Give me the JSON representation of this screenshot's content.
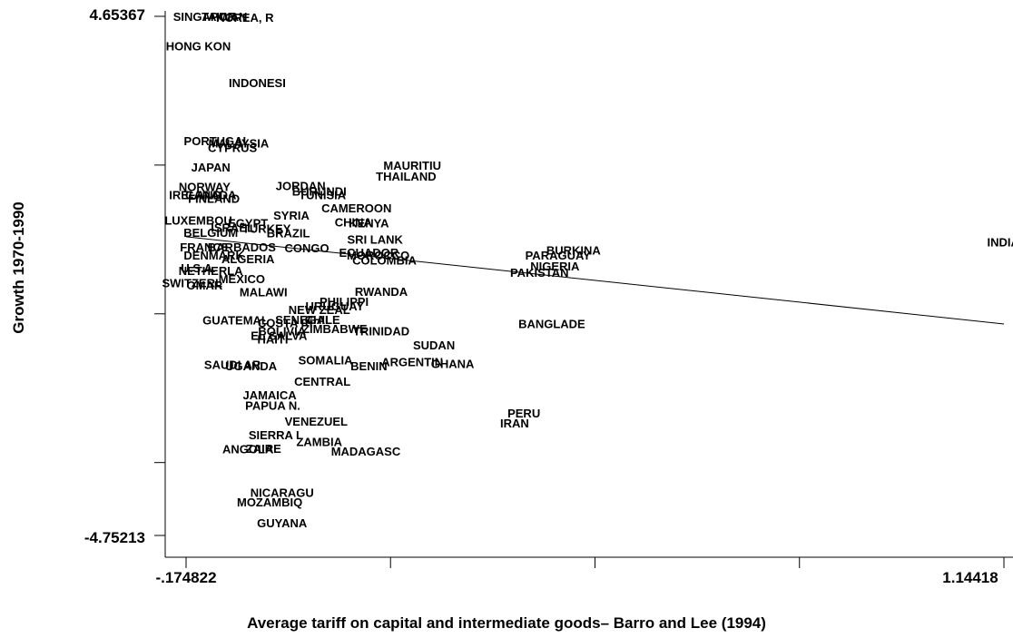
{
  "chart_data": {
    "type": "scatter",
    "title": "",
    "xlabel": "Average tariff on capital and intermediate goods– Barro and Lee (1994)",
    "ylabel": "Growth 1970-1990",
    "xlim": [
      -0.174822,
      1.14418
    ],
    "ylim": [
      -4.75213,
      4.65367
    ],
    "x_tick_labels": [
      "-.174822",
      "1.14418"
    ],
    "y_tick_labels": [
      "4.65367",
      "-4.75213"
    ],
    "x_ticks": [
      -0.174822,
      0.1549,
      0.4847,
      0.8144,
      1.14418
    ],
    "y_ticks": [
      4.65367,
      1.9586,
      -0.7364,
      -3.4314,
      -4.75213
    ],
    "fit_line": [
      [
        -0.174822,
        0.66
      ],
      [
        1.14418,
        -0.92
      ]
    ],
    "points": [
      {
        "label": "SINGAPOR",
        "x": -0.145,
        "y": 4.65
      },
      {
        "label": "TAIWAN",
        "x": -0.113,
        "y": 4.65
      },
      {
        "label": "KOREA, R",
        "x": -0.08,
        "y": 4.64
      },
      {
        "label": "HONG KON",
        "x": -0.155,
        "y": 4.12
      },
      {
        "label": "INDONESI",
        "x": -0.06,
        "y": 3.45
      },
      {
        "label": "PORTUGAL",
        "x": -0.125,
        "y": 2.4
      },
      {
        "label": "MALAYSIA",
        "x": -0.09,
        "y": 2.36
      },
      {
        "label": "CYPRUS",
        "x": -0.1,
        "y": 2.28
      },
      {
        "label": "MAURITIU",
        "x": 0.19,
        "y": 1.96
      },
      {
        "label": "JAPAN",
        "x": -0.135,
        "y": 1.92
      },
      {
        "label": "THAILAND",
        "x": 0.18,
        "y": 1.76
      },
      {
        "label": "NORWAY",
        "x": -0.145,
        "y": 1.57
      },
      {
        "label": "JORDAN",
        "x": 0.01,
        "y": 1.59
      },
      {
        "label": "BURUNDI",
        "x": 0.04,
        "y": 1.49
      },
      {
        "label": "TUNISIA",
        "x": 0.045,
        "y": 1.42
      },
      {
        "label": "IRELAND",
        "x": -0.16,
        "y": 1.42
      },
      {
        "label": "CANADA",
        "x": -0.135,
        "y": 1.42
      },
      {
        "label": "FINLAND",
        "x": -0.13,
        "y": 1.36
      },
      {
        "label": "CAMEROON",
        "x": 0.1,
        "y": 1.18
      },
      {
        "label": "SYRIA",
        "x": -0.005,
        "y": 1.05
      },
      {
        "label": "LUXEMBOU",
        "x": -0.155,
        "y": 0.96
      },
      {
        "label": "CHINA",
        "x": 0.095,
        "y": 0.93
      },
      {
        "label": "KENYA",
        "x": 0.12,
        "y": 0.91
      },
      {
        "label": "EGYPT",
        "x": -0.075,
        "y": 0.91
      },
      {
        "label": "ISRAEL",
        "x": -0.1,
        "y": 0.83
      },
      {
        "label": "TURKEY",
        "x": -0.045,
        "y": 0.81
      },
      {
        "label": "BELGIUM",
        "x": -0.135,
        "y": 0.74
      },
      {
        "label": "BRAZIL",
        "x": -0.01,
        "y": 0.73
      },
      {
        "label": "SRI LANK",
        "x": 0.13,
        "y": 0.62
      },
      {
        "label": "FRANCE",
        "x": -0.145,
        "y": 0.48
      },
      {
        "label": "BARBADOS",
        "x": -0.085,
        "y": 0.48
      },
      {
        "label": "CONGO",
        "x": 0.02,
        "y": 0.46
      },
      {
        "label": "BURKINA",
        "x": 0.45,
        "y": 0.42
      },
      {
        "label": "PARAGUAY",
        "x": 0.425,
        "y": 0.33
      },
      {
        "label": "DENMARK",
        "x": -0.13,
        "y": 0.33
      },
      {
        "label": "ECUADOR",
        "x": 0.12,
        "y": 0.38
      },
      {
        "label": "MOROCCO",
        "x": 0.135,
        "y": 0.33
      },
      {
        "label": "ALGERIA",
        "x": -0.075,
        "y": 0.26
      },
      {
        "label": "COLOMBIA",
        "x": 0.145,
        "y": 0.24
      },
      {
        "label": "NIGERIA",
        "x": 0.42,
        "y": 0.13
      },
      {
        "label": "INDIA",
        "x": 1.12,
        "y": 0.57
      },
      {
        "label": "U.S.A.",
        "x": -0.155,
        "y": 0.1
      },
      {
        "label": "NETHERLA",
        "x": -0.135,
        "y": 0.05
      },
      {
        "label": "PAKISTAN",
        "x": 0.395,
        "y": 0.02
      },
      {
        "label": "MEXICO",
        "x": -0.085,
        "y": -0.1
      },
      {
        "label": "SWITZERL",
        "x": -0.165,
        "y": -0.17
      },
      {
        "label": "OMAR",
        "x": -0.145,
        "y": -0.21
      },
      {
        "label": "MALAWI",
        "x": -0.05,
        "y": -0.34
      },
      {
        "label": "RWANDA",
        "x": 0.14,
        "y": -0.33
      },
      {
        "label": "PHILIPPI",
        "x": 0.08,
        "y": -0.51
      },
      {
        "label": "URUGUAY",
        "x": 0.065,
        "y": -0.59
      },
      {
        "label": "NEW ZEAL",
        "x": 0.04,
        "y": -0.66
      },
      {
        "label": "GUATEMAL",
        "x": -0.095,
        "y": -0.85
      },
      {
        "label": "SENEGAL",
        "x": 0.015,
        "y": -0.84
      },
      {
        "label": "CHILE",
        "x": 0.045,
        "y": -0.84
      },
      {
        "label": "COSTA RI",
        "x": -0.015,
        "y": -0.9
      },
      {
        "label": "BANGLADE",
        "x": 0.415,
        "y": -0.91
      },
      {
        "label": "BOLIVIA",
        "x": -0.02,
        "y": -1.04
      },
      {
        "label": "ZIMBABWE",
        "x": 0.065,
        "y": -1.0
      },
      {
        "label": "TRINIDAD",
        "x": 0.14,
        "y": -1.04
      },
      {
        "label": "EL SALVA",
        "x": -0.025,
        "y": -1.13
      },
      {
        "label": "HAITI",
        "x": -0.035,
        "y": -1.19
      },
      {
        "label": "SUDAN",
        "x": 0.225,
        "y": -1.3
      },
      {
        "label": "SOMALIA",
        "x": 0.05,
        "y": -1.57
      },
      {
        "label": "ARGENTIN",
        "x": 0.19,
        "y": -1.6
      },
      {
        "label": "GHANA",
        "x": 0.255,
        "y": -1.64
      },
      {
        "label": "BENIN",
        "x": 0.12,
        "y": -1.68
      },
      {
        "label": "SAUDI AR",
        "x": -0.1,
        "y": -1.65
      },
      {
        "label": "UGANDA",
        "x": -0.07,
        "y": -1.68
      },
      {
        "label": "CENTRAL",
        "x": 0.045,
        "y": -1.96
      },
      {
        "label": "JAMAICA",
        "x": -0.04,
        "y": -2.2
      },
      {
        "label": "PAPUA N.",
        "x": -0.035,
        "y": -2.39
      },
      {
        "label": "PERU",
        "x": 0.37,
        "y": -2.53
      },
      {
        "label": "VENEZUEL",
        "x": 0.035,
        "y": -2.68
      },
      {
        "label": "IRAN",
        "x": 0.355,
        "y": -2.71
      },
      {
        "label": "SIERRA L",
        "x": -0.03,
        "y": -2.93
      },
      {
        "label": "ZAMBIA",
        "x": 0.04,
        "y": -3.05
      },
      {
        "label": "ZAIRE",
        "x": -0.05,
        "y": -3.17
      },
      {
        "label": "ANGOLA",
        "x": -0.075,
        "y": -3.18
      },
      {
        "label": "MADAGASC",
        "x": 0.115,
        "y": -3.22
      },
      {
        "label": "NICARAGU",
        "x": -0.02,
        "y": -3.97
      },
      {
        "label": "MOZAMBIQ",
        "x": -0.04,
        "y": -4.14
      },
      {
        "label": "GUYANA",
        "x": -0.02,
        "y": -4.52
      }
    ]
  }
}
